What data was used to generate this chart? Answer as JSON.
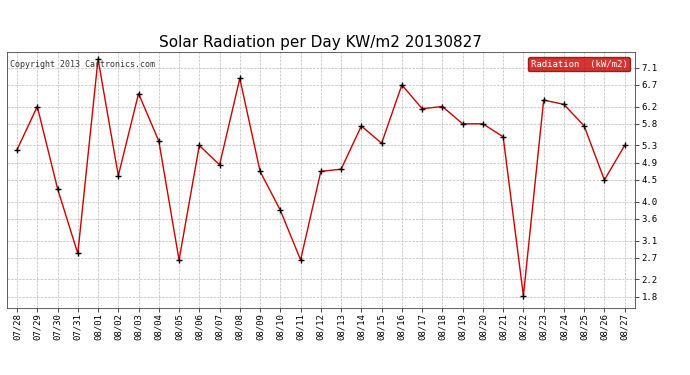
{
  "title": "Solar Radiation per Day KW/m2 20130827",
  "copyright": "Copyright 2013 Cartronics.com",
  "legend_label": "Radiation  (kW/m2)",
  "dates": [
    "07/28",
    "07/29",
    "07/30",
    "07/31",
    "08/01",
    "08/02",
    "08/03",
    "08/04",
    "08/05",
    "08/06",
    "08/07",
    "08/08",
    "08/09",
    "08/10",
    "08/11",
    "08/12",
    "08/13",
    "08/14",
    "08/15",
    "08/16",
    "08/17",
    "08/18",
    "08/19",
    "08/20",
    "08/21",
    "08/22",
    "08/23",
    "08/24",
    "08/25",
    "08/26",
    "08/27"
  ],
  "values": [
    5.2,
    6.2,
    4.3,
    2.8,
    7.3,
    4.6,
    6.5,
    5.4,
    2.65,
    5.3,
    4.85,
    6.85,
    4.7,
    3.8,
    2.65,
    4.7,
    4.75,
    5.75,
    5.35,
    6.7,
    6.15,
    6.2,
    5.8,
    5.8,
    5.5,
    1.82,
    6.35,
    6.25,
    5.75,
    4.5,
    5.3
  ],
  "line_color": "#cc0000",
  "marker_color": "#000000",
  "bg_color": "#ffffff",
  "grid_color": "#bbbbbb",
  "yticks": [
    1.8,
    2.2,
    2.7,
    3.1,
    3.6,
    4.0,
    4.5,
    4.9,
    5.3,
    5.8,
    6.2,
    6.7,
    7.1
  ],
  "ylim": [
    1.55,
    7.45
  ],
  "title_fontsize": 11,
  "tick_fontsize": 6.5,
  "legend_bg": "#cc0000",
  "legend_text_color": "#ffffff",
  "fig_width": 6.9,
  "fig_height": 3.75,
  "dpi": 100
}
